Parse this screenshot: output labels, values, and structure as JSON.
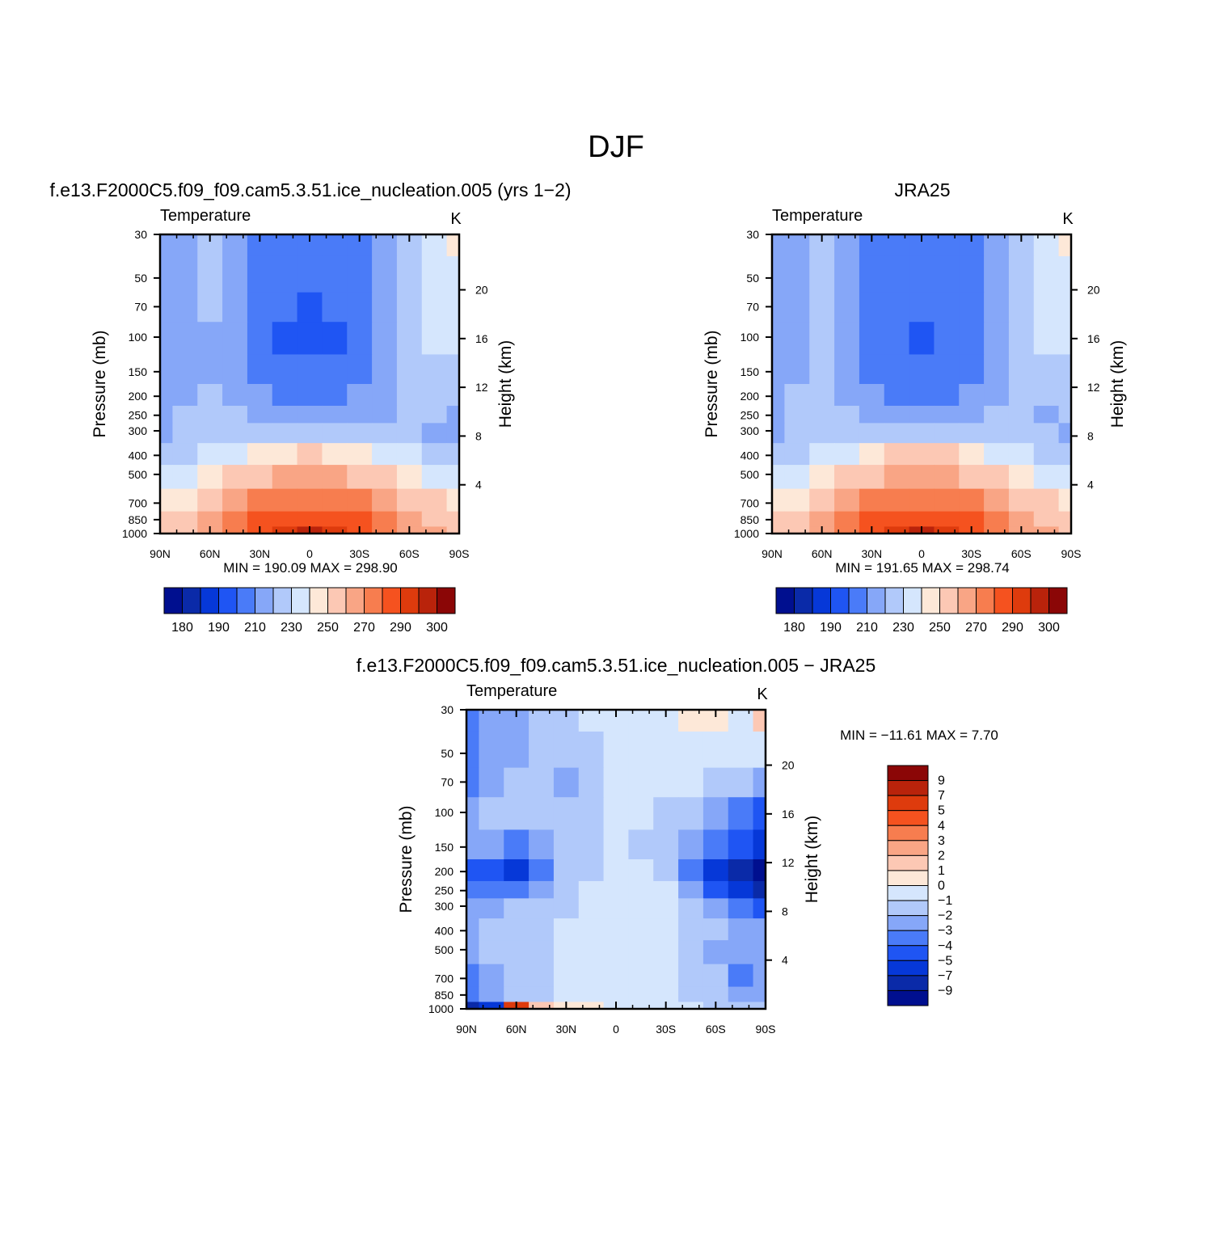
{
  "figure": {
    "title": "DJF"
  },
  "palette": {
    "main": [
      "#000f8f",
      "#0a2aa8",
      "#0638d8",
      "#1f55f3",
      "#4a7bf8",
      "#86a7f8",
      "#b1c9fa",
      "#d5e6fd",
      "#fde8d8",
      "#fcc8b4",
      "#f9a585",
      "#f77d4f",
      "#f5521f",
      "#de3b0d",
      "#b9230b",
      "#8b0606"
    ],
    "diff": [
      "#000f8f",
      "#0a2aa8",
      "#0638d8",
      "#1f55f3",
      "#4a7bf8",
      "#86a7f8",
      "#b1c9fa",
      "#d5e6fd",
      "#fde8d8",
      "#fcc8b4",
      "#f9a585",
      "#f77d4f",
      "#f5521f",
      "#de3b0d",
      "#b9230b",
      "#8b0606"
    ]
  },
  "chart_data": [
    {
      "type": "heatmap",
      "title": "f.e13.F2000C5.f09_f09.cam5.3.51.ice_nucleation.005 (yrs 1−2)",
      "field_label": "Temperature",
      "units": "K",
      "ylabel": "Pressure (mb)",
      "y2label": "Height (km)",
      "x_ticks": [
        "90N",
        "60N",
        "30N",
        "0",
        "30S",
        "60S",
        "90S"
      ],
      "y_ticks": [
        "30",
        "50",
        "70",
        "100",
        "150",
        "200",
        "250",
        "300",
        "400",
        "500",
        "700",
        "850",
        "1000"
      ],
      "y2_ticks": [
        "20",
        "16",
        "12",
        "8",
        "4"
      ],
      "min_label": "MIN",
      "min_value": "190.09",
      "max_label": "MAX",
      "max_value": "298.90",
      "levels": [
        180,
        185,
        190,
        200,
        210,
        220,
        230,
        240,
        250,
        260,
        270,
        280,
        290,
        295,
        300
      ],
      "colorbar_labels": [
        "180",
        "190",
        "210",
        "230",
        "250",
        "270",
        "290",
        "300"
      ],
      "lat": [
        90,
        75,
        60,
        45,
        30,
        15,
        0,
        -15,
        -30,
        -45,
        -60,
        -75,
        -90
      ],
      "pressure": [
        30,
        50,
        70,
        100,
        150,
        200,
        250,
        300,
        400,
        500,
        700,
        850,
        1000
      ],
      "values": [
        [
          214,
          218,
          220,
          215,
          208,
          205,
          204,
          205,
          208,
          218,
          226,
          236,
          240
        ],
        [
          212,
          218,
          220,
          214,
          205,
          202,
          201,
          202,
          206,
          218,
          226,
          234,
          238
        ],
        [
          214,
          218,
          220,
          213,
          204,
          200,
          199,
          200,
          204,
          217,
          225,
          232,
          234
        ],
        [
          216,
          218,
          219,
          212,
          203,
          199,
          198,
          199,
          203,
          215,
          224,
          230,
          232
        ],
        [
          216,
          218,
          219,
          213,
          205,
          202,
          201,
          202,
          205,
          213,
          222,
          226,
          228
        ],
        [
          214,
          219,
          220,
          216,
          210,
          208,
          207,
          208,
          210,
          216,
          220,
          221,
          222
        ],
        [
          214,
          220,
          222,
          220,
          216,
          215,
          214,
          215,
          216,
          219,
          220,
          220,
          219
        ],
        [
          216,
          220,
          222,
          224,
          226,
          227,
          228,
          227,
          226,
          224,
          222,
          218,
          216
        ],
        [
          222,
          226,
          230,
          236,
          244,
          249,
          251,
          249,
          244,
          236,
          230,
          226,
          222
        ],
        [
          230,
          236,
          242,
          250,
          256,
          261,
          263,
          261,
          256,
          250,
          242,
          236,
          232
        ],
        [
          244,
          248,
          256,
          265,
          272,
          276,
          278,
          276,
          272,
          265,
          256,
          250,
          248
        ],
        [
          250,
          255,
          262,
          272,
          280,
          286,
          288,
          286,
          280,
          272,
          262,
          258,
          254
        ],
        [
          253,
          258,
          266,
          276,
          286,
          293,
          298,
          294,
          286,
          278,
          266,
          260,
          256
        ]
      ]
    },
    {
      "type": "heatmap",
      "title": "JRA25",
      "field_label": "Temperature",
      "units": "K",
      "ylabel": "Pressure (mb)",
      "y2label": "Height (km)",
      "x_ticks": [
        "90N",
        "60N",
        "30N",
        "0",
        "30S",
        "60S",
        "90S"
      ],
      "y_ticks": [
        "30",
        "50",
        "70",
        "100",
        "150",
        "200",
        "250",
        "300",
        "400",
        "500",
        "700",
        "850",
        "1000"
      ],
      "y2_ticks": [
        "20",
        "16",
        "12",
        "8",
        "4"
      ],
      "min_label": "MIN",
      "min_value": "191.65",
      "max_label": "MAX",
      "max_value": "298.74",
      "levels": [
        180,
        185,
        190,
        200,
        210,
        220,
        230,
        240,
        250,
        260,
        270,
        280,
        290,
        295,
        300
      ],
      "colorbar_labels": [
        "180",
        "190",
        "210",
        "230",
        "250",
        "270",
        "290",
        "300"
      ],
      "lat": [
        90,
        75,
        60,
        45,
        30,
        15,
        0,
        -15,
        -30,
        -45,
        -60,
        -75,
        -90
      ],
      "pressure": [
        30,
        50,
        70,
        100,
        150,
        200,
        250,
        300,
        400,
        500,
        700,
        850,
        1000
      ],
      "values": [
        [
          216,
          219,
          221,
          216,
          209,
          206,
          205,
          206,
          209,
          219,
          227,
          237,
          241
        ],
        [
          213,
          219,
          221,
          215,
          206,
          203,
          202,
          203,
          207,
          219,
          227,
          235,
          239
        ],
        [
          214,
          219,
          221,
          214,
          205,
          201,
          200,
          201,
          205,
          218,
          226,
          233,
          235
        ],
        [
          215,
          219,
          220,
          213,
          204,
          200,
          199,
          200,
          204,
          216,
          225,
          231,
          232
        ],
        [
          216,
          219,
          220,
          214,
          206,
          203,
          202,
          203,
          206,
          214,
          223,
          226,
          229
        ],
        [
          217,
          220,
          221,
          217,
          211,
          209,
          208,
          209,
          211,
          217,
          221,
          221,
          223
        ],
        [
          216,
          220,
          223,
          221,
          217,
          216,
          215,
          216,
          217,
          220,
          221,
          218,
          220
        ],
        [
          218,
          221,
          223,
          225,
          227,
          228,
          229,
          228,
          227,
          225,
          223,
          220,
          218
        ],
        [
          224,
          227,
          231,
          237,
          245,
          250,
          252,
          250,
          245,
          237,
          231,
          227,
          224
        ],
        [
          232,
          237,
          243,
          251,
          257,
          262,
          264,
          262,
          257,
          251,
          243,
          237,
          233
        ],
        [
          246,
          249,
          257,
          266,
          273,
          277,
          279,
          277,
          273,
          266,
          257,
          251,
          249
        ],
        [
          252,
          256,
          263,
          273,
          281,
          287,
          289,
          287,
          281,
          273,
          263,
          259,
          256
        ],
        [
          254,
          258,
          267,
          277,
          287,
          293,
          298,
          294,
          287,
          279,
          267,
          261,
          258
        ]
      ]
    },
    {
      "type": "heatmap",
      "title": "f.e13.F2000C5.f09_f09.cam5.3.51.ice_nucleation.005 − JRA25",
      "field_label": "Temperature",
      "units": "K",
      "ylabel": "Pressure (mb)",
      "y2label": "Height (km)",
      "x_ticks": [
        "90N",
        "60N",
        "30N",
        "0",
        "30S",
        "60S",
        "90S"
      ],
      "y_ticks": [
        "30",
        "50",
        "70",
        "100",
        "150",
        "200",
        "250",
        "300",
        "400",
        "500",
        "700",
        "850",
        "1000"
      ],
      "y2_ticks": [
        "20",
        "16",
        "12",
        "8",
        "4"
      ],
      "min_label": "MIN",
      "min_value": "−11.61",
      "max_label": "MAX",
      "max_value": "7.70",
      "levels": [
        -9,
        -7,
        -5,
        -4,
        -3,
        -2,
        -1,
        0,
        1,
        2,
        3,
        4,
        5,
        7,
        9
      ],
      "colorbar_labels": [
        "9",
        "7",
        "5",
        "4",
        "3",
        "2",
        "1",
        "0",
        "−1",
        "−2",
        "−3",
        "−4",
        "−5",
        "−7",
        "−9"
      ],
      "lat": [
        90,
        75,
        60,
        45,
        30,
        15,
        0,
        -15,
        -30,
        -45,
        -60,
        -75,
        -90
      ],
      "pressure": [
        30,
        50,
        70,
        100,
        150,
        200,
        250,
        300,
        400,
        500,
        700,
        850,
        1000
      ],
      "values": [
        [
          -3.5,
          -2.5,
          -2.2,
          -1.8,
          -1.2,
          -0.8,
          -0.6,
          -0.5,
          -0.5,
          0.3,
          0.5,
          -0.5,
          1.5
        ],
        [
          -3.5,
          -2.5,
          -2.2,
          -2.0,
          -1.5,
          -1.2,
          -1.0,
          -0.8,
          -0.7,
          -0.6,
          -0.8,
          -1.0,
          -1.0
        ],
        [
          -3.2,
          -2.5,
          -2.0,
          -1.6,
          -2.2,
          -1.2,
          -1.0,
          -0.8,
          -0.6,
          -1.0,
          -1.5,
          -2.0,
          -3.0
        ],
        [
          -3.0,
          -1.5,
          -1.5,
          -2.0,
          -1.6,
          -1.2,
          -1.0,
          -0.8,
          -1.2,
          -2.0,
          -2.5,
          -3.5,
          -4.5
        ],
        [
          -2.5,
          -2.5,
          -3.2,
          -2.5,
          -1.6,
          -1.2,
          -1.0,
          -1.2,
          -1.5,
          -2.5,
          -4.0,
          -5.0,
          -6.0
        ],
        [
          -4.5,
          -5.0,
          -5.2,
          -4.0,
          -1.5,
          -1.2,
          -1.0,
          -0.8,
          -1.2,
          -3.5,
          -6.0,
          -8.0,
          -10.0
        ],
        [
          -4.0,
          -4.0,
          -3.5,
          -2.5,
          -1.5,
          -1.0,
          -0.8,
          -0.7,
          -1.0,
          -2.5,
          -4.5,
          -6.5,
          -9.0
        ],
        [
          -2.5,
          -2.2,
          -1.8,
          -1.5,
          -1.2,
          -0.8,
          -0.7,
          -0.6,
          -0.8,
          -1.5,
          -2.5,
          -3.5,
          -5.0
        ],
        [
          -2.5,
          -2.0,
          -1.5,
          -1.2,
          -0.8,
          -0.6,
          -0.6,
          -0.5,
          -0.7,
          -1.2,
          -2.0,
          -2.5,
          -2.8
        ],
        [
          -3.0,
          -2.0,
          -1.5,
          -1.2,
          -0.8,
          -0.6,
          -0.5,
          -0.5,
          -0.8,
          -1.5,
          -2.5,
          -3.0,
          -2.5
        ],
        [
          -3.5,
          -2.5,
          -1.5,
          -1.2,
          -1.0,
          -0.8,
          -0.7,
          -0.8,
          -1.0,
          -1.5,
          -2.0,
          -3.5,
          -3.0
        ],
        [
          -3.5,
          -2.5,
          -1.5,
          -1.2,
          -1.0,
          -0.9,
          -0.8,
          -0.8,
          -1.0,
          -1.2,
          -1.5,
          -2.5,
          -2.5
        ],
        [
          -8.0,
          -6.0,
          5.0,
          1.5,
          0.5,
          0.2,
          -0.5,
          -0.6,
          -0.8,
          -1.0,
          -1.2,
          -1.5,
          -1.5
        ]
      ]
    }
  ]
}
